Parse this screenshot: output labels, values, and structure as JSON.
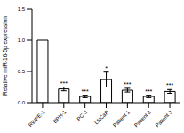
{
  "chart_data": {
    "type": "bar",
    "y_label": "Relative miR-16-5p expression",
    "categories": [
      "RWPE-1",
      "BPH-1",
      "PC-3",
      "LNCaP",
      "Patient 1",
      "Patient 2",
      "Patient 3"
    ],
    "values": [
      1.0,
      0.22,
      0.1,
      0.37,
      0.2,
      0.1,
      0.18
    ],
    "errors": [
      0.0,
      0.03,
      0.02,
      0.12,
      0.03,
      0.02,
      0.03
    ],
    "annotations": [
      null,
      "***",
      "***",
      "*",
      "***",
      "***",
      "***"
    ],
    "color": "#ffffff",
    "ylim": [
      0,
      1.5
    ],
    "yticks": [
      {
        "value": 0,
        "label": "0.0"
      },
      {
        "value": 0.5,
        "label": "0.5"
      },
      {
        "value": 1.0,
        "label": "1.0"
      },
      {
        "value": 1.5,
        "label": "1.5"
      }
    ],
    "grid": false
  }
}
